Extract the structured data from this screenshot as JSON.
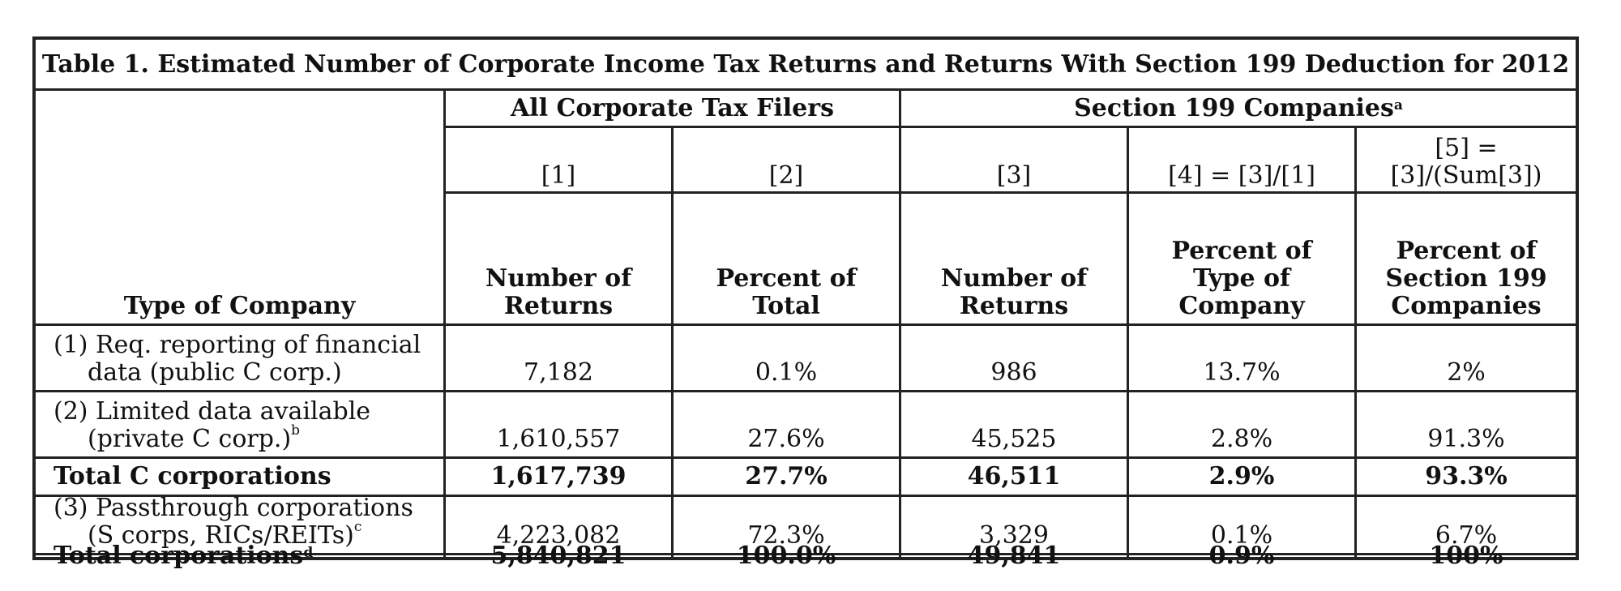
{
  "title": "Table 1. Estimated Number of Corporate Income Tax Returns and Returns With Section 199 Deduction for 2012",
  "group_headers": {
    "all_filers": "All Corporate Tax Filers",
    "section199": "Section 199 Companies",
    "section199_note": "a"
  },
  "column_codes": [
    "[1]",
    "[2]",
    "[3]",
    "[4] = [3]/[1]",
    [
      "[5] =",
      "[3]/(Sum[3])"
    ]
  ],
  "column_headers": [
    [
      "Number of",
      "Returns"
    ],
    [
      "Percent of",
      "Total"
    ],
    [
      "Number of",
      "Returns"
    ],
    [
      "Percent of",
      "Type of",
      "Company"
    ],
    [
      "Percent of",
      "Section 199",
      "Companies"
    ]
  ],
  "row_header_label": "Type of Company",
  "rows": [
    {
      "label": [
        "(1) Req. reporting of financial",
        "data (public C corp.)"
      ],
      "note": "",
      "bold": false,
      "values": [
        "7,182",
        "0.1%",
        "986",
        "13.7%",
        "2%"
      ]
    },
    {
      "label": [
        "(2) Limited data available",
        "(private C corp.)"
      ],
      "note": "b",
      "bold": false,
      "values": [
        "1,610,557",
        "27.6%",
        "45,525",
        "2.8%",
        "91.3%"
      ]
    },
    {
      "label": [
        "Total C corporations"
      ],
      "note": "",
      "bold": true,
      "values": [
        "1,617,739",
        "27.7%",
        "46,511",
        "2.9%",
        "93.3%"
      ]
    },
    {
      "label": [
        "(3) Passthrough corporations",
        "(S corps, RICs/REITs)"
      ],
      "note": "c",
      "bold": false,
      "values": [
        "4,223,082",
        "72.3%",
        "3,329",
        "0.1%",
        "6.7%"
      ]
    },
    {
      "label": [
        "Total corporations"
      ],
      "note": "d",
      "bold": true,
      "values": [
        "5,840,821",
        "100.0%",
        "49,841",
        "0.9%",
        "100%"
      ]
    }
  ]
}
